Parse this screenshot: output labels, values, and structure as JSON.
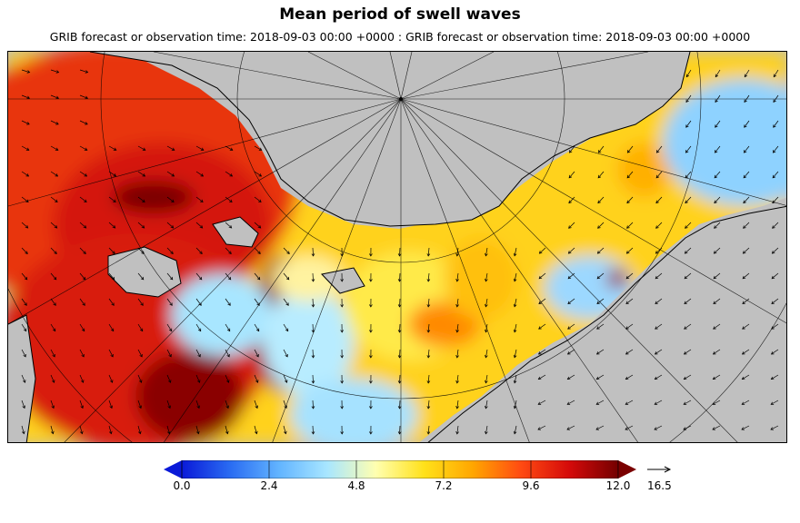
{
  "title": "Mean period of swell waves",
  "subtitle": "GRIB forecast or observation time: 2018-09-03 00:00 +0000 : GRIB forecast or observation time: 2018-09-03 00:00 +0000",
  "colorbar": {
    "ticks": [
      "0.0",
      "2.4",
      "4.8",
      "7.2",
      "9.6",
      "12.0"
    ],
    "min": 0.0,
    "max": 12.0,
    "colors": [
      "#0a1ad8",
      "#2a6cf2",
      "#62b4ff",
      "#a8e6ff",
      "#ffffb0",
      "#ffe11a",
      "#ffa600",
      "#ff4a12",
      "#d40a0a",
      "#740000"
    ],
    "under_color": "#0a1ad8",
    "over_color": "#7a0000"
  },
  "vector_reference": {
    "value": "16.5"
  },
  "map": {
    "land_color": "#c0c0c0",
    "pole_grid": true
  }
}
